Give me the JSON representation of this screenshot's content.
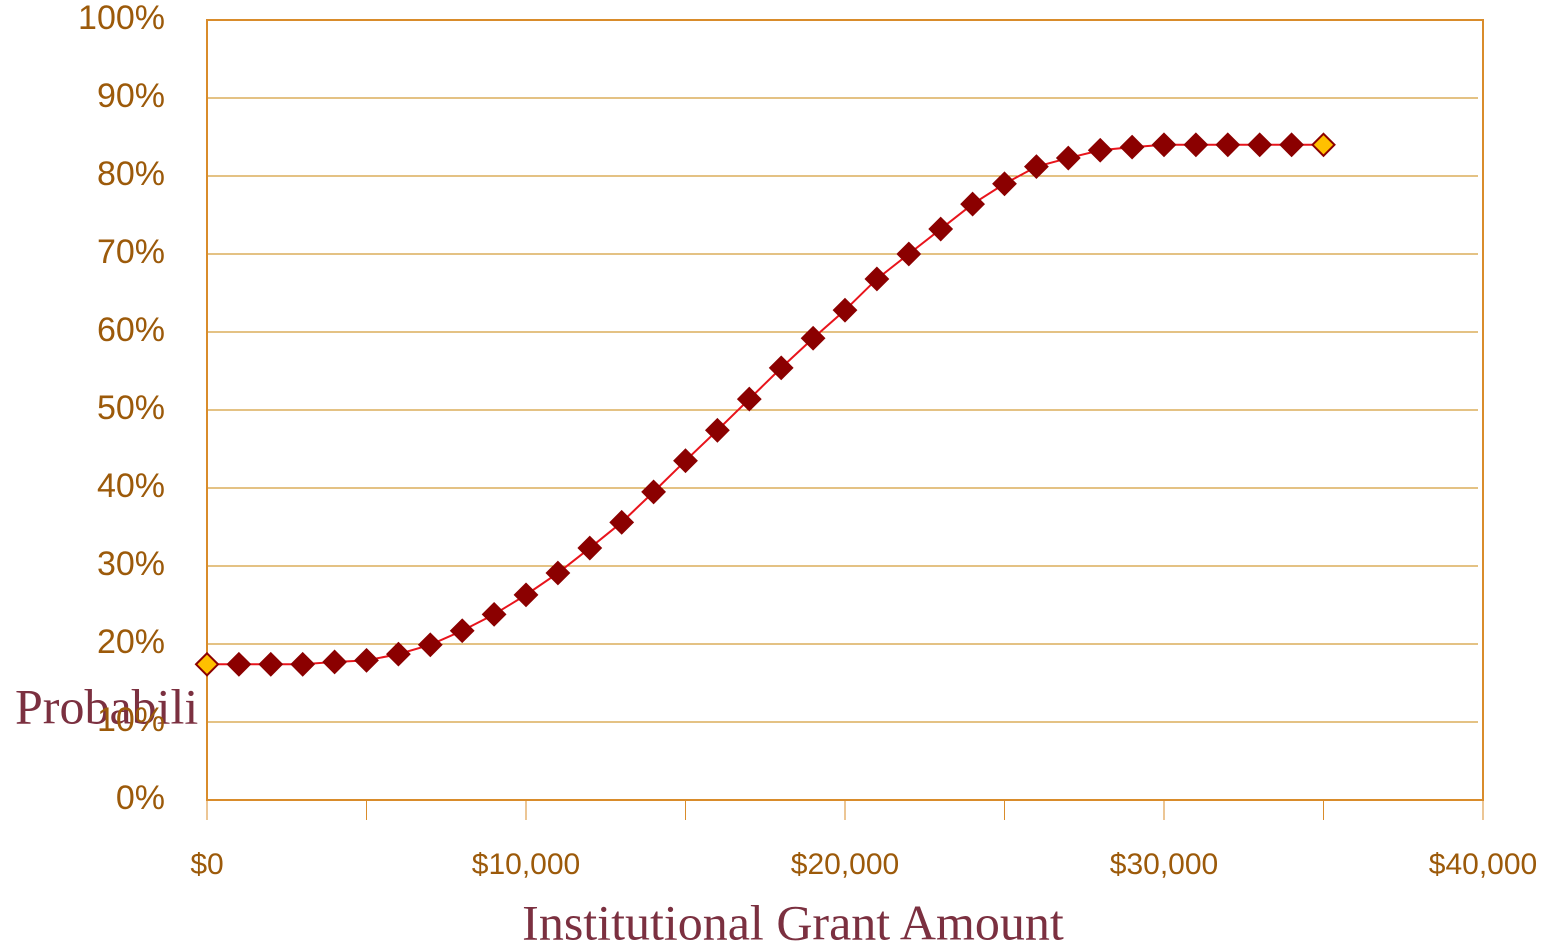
{
  "chart_data": {
    "type": "line",
    "y_label": "Probabili",
    "x_label": "Institutional Grant Amount",
    "x": [
      0,
      1000,
      2000,
      3000,
      4000,
      5000,
      6000,
      7000,
      8000,
      9000,
      10000,
      11000,
      12000,
      13000,
      14000,
      15000,
      16000,
      17000,
      18000,
      19000,
      20000,
      21000,
      22000,
      23000,
      24000,
      25000,
      26000,
      27000,
      28000,
      29000,
      30000,
      31000,
      32000,
      33000,
      34000,
      35000
    ],
    "series": [
      {
        "color": "#8b0000",
        "line_color": "#e8141c",
        "values": [
          17.4,
          17.4,
          17.4,
          17.4,
          17.7,
          17.9,
          18.7,
          19.9,
          21.7,
          23.8,
          26.3,
          29.1,
          32.3,
          35.6,
          39.5,
          43.5,
          47.4,
          51.4,
          55.4,
          59.2,
          62.8,
          66.8,
          70.0,
          73.2,
          76.4,
          79.0,
          81.2,
          82.3,
          83.3,
          83.7,
          84.0,
          84.0,
          84.0,
          84.0,
          84.0,
          84.0
        ]
      }
    ],
    "highlight": {
      "indices": [
        0,
        35
      ],
      "color": "#ffc000"
    },
    "xlim": [
      0,
      40000
    ],
    "xticks": [
      {
        "value": 0,
        "label": "$0"
      },
      {
        "value": 10000,
        "label": "$10,000"
      },
      {
        "value": 20000,
        "label": "$20,000"
      },
      {
        "value": 30000,
        "label": "$30,000"
      },
      {
        "value": 40000,
        "label": "$40,000"
      }
    ],
    "xminor_ticks": [
      5000,
      15000,
      25000,
      35000
    ],
    "ylim": [
      0,
      100
    ],
    "yticks": [
      {
        "value": 0,
        "label": "0%"
      },
      {
        "value": 10,
        "label": "10%"
      },
      {
        "value": 20,
        "label": "20%"
      },
      {
        "value": 30,
        "label": "30%"
      },
      {
        "value": 40,
        "label": "40%"
      },
      {
        "value": 50,
        "label": "50%"
      },
      {
        "value": 60,
        "label": "60%"
      },
      {
        "value": 70,
        "label": "70%"
      },
      {
        "value": 80,
        "label": "80%"
      },
      {
        "value": 90,
        "label": "90%"
      },
      {
        "value": 100,
        "label": "100%"
      }
    ],
    "grid": true
  }
}
